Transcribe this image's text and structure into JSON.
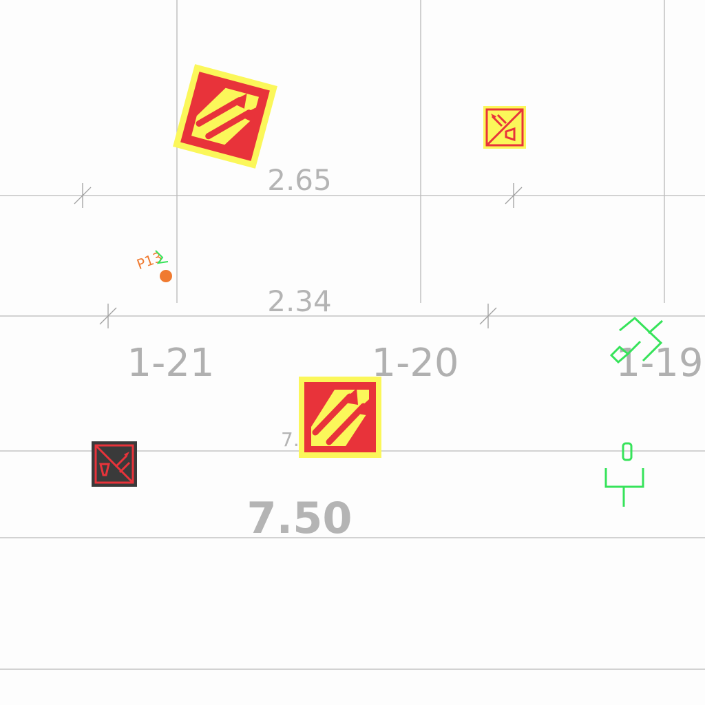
{
  "dimensions": {
    "d1": "2.65",
    "d2": "2.34",
    "d3": "7.50",
    "d3_partial": "7."
  },
  "grid_labels": {
    "g21": "1-21",
    "g20": "1-20",
    "g19": "1-19"
  },
  "sketch_text": "P13",
  "colors": {
    "sign_red": "#e8333a",
    "sign_yellow": "#fbf75a",
    "dark_panel": "#3a3a3a",
    "green_symbol": "#36e35a",
    "orange_marker": "#f07a30"
  },
  "icons": {
    "sign_a": "hazard-arrows-sign-icon",
    "sign_b": "escape-route-sign-icon",
    "sign_c": "hazard-arrows-sign-icon",
    "sign_d": "escape-route-dark-sign-icon",
    "symbol_a": "fixture-symbol-icon",
    "symbol_b": "fixture-symbol-icon"
  }
}
